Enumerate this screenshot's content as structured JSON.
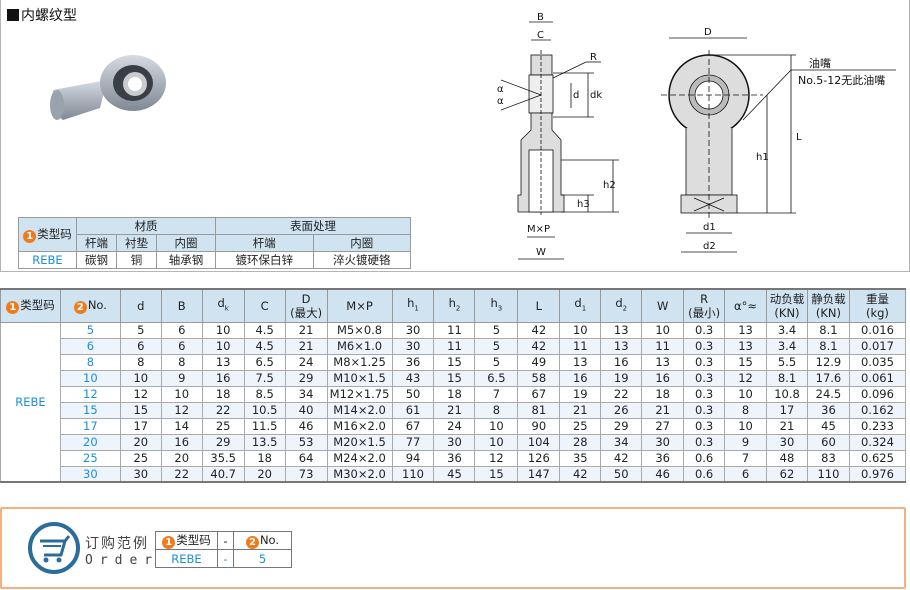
{
  "title": "内螺纹型",
  "material_table": {
    "type_code_label": "类型码",
    "material_label": "材质",
    "surface_label": "表面处理",
    "sub_headers": [
      "杆端",
      "衬垫",
      "内圈",
      "杆端",
      "内圈"
    ],
    "row": [
      "REBE",
      "碳钢",
      "铜",
      "轴承钢",
      "镀环保白锌",
      "淬火镀硬铬"
    ]
  },
  "drawing": {
    "labels": {
      "B": "B",
      "C": "C",
      "R": "R",
      "a": "α",
      "d": "d",
      "dk": "dk",
      "D": "D",
      "h1": "h1",
      "h2": "h2",
      "h3": "h3",
      "L": "L",
      "MxP": "M×P",
      "W": "W",
      "d1": "d1",
      "d2": "d2"
    },
    "oil_nipple": "油嘴",
    "oil_note": "No.5-12无此油嘴"
  },
  "spec_table": {
    "badge1": "1",
    "badge2": "2",
    "headers": [
      "类型码",
      "No.",
      "d",
      "B",
      "dk",
      "C",
      "D\n(最大)",
      "M×P",
      "h1",
      "h2",
      "h3",
      "L",
      "d1",
      "d2",
      "W",
      "R\n(最小)",
      "α°≈",
      "动负载\n(KN)",
      "静负载\n(KN)",
      "重量\n(kg)"
    ],
    "type_code": "REBE",
    "rows": [
      [
        "5",
        "5",
        "6",
        "10",
        "4.5",
        "21",
        "M5×0.8",
        "30",
        "11",
        "5",
        "42",
        "10",
        "13",
        "10",
        "0.3",
        "13",
        "3.4",
        "8.1",
        "0.016"
      ],
      [
        "6",
        "6",
        "6",
        "10",
        "4.5",
        "21",
        "M6×1.0",
        "30",
        "11",
        "5",
        "42",
        "11",
        "13",
        "11",
        "0.3",
        "13",
        "3.4",
        "8.1",
        "0.017"
      ],
      [
        "8",
        "8",
        "8",
        "13",
        "6.5",
        "24",
        "M8×1.25",
        "36",
        "15",
        "5",
        "49",
        "13",
        "16",
        "13",
        "0.3",
        "15",
        "5.5",
        "12.9",
        "0.035"
      ],
      [
        "10",
        "10",
        "9",
        "16",
        "7.5",
        "29",
        "M10×1.5",
        "43",
        "15",
        "6.5",
        "58",
        "16",
        "19",
        "16",
        "0.3",
        "12",
        "8.1",
        "17.6",
        "0.061"
      ],
      [
        "12",
        "12",
        "10",
        "18",
        "8.5",
        "34",
        "M12×1.75",
        "50",
        "18",
        "7",
        "67",
        "19",
        "22",
        "18",
        "0.3",
        "10",
        "10.8",
        "24.5",
        "0.096"
      ],
      [
        "15",
        "15",
        "12",
        "22",
        "10.5",
        "40",
        "M14×2.0",
        "61",
        "21",
        "8",
        "81",
        "21",
        "26",
        "21",
        "0.3",
        "8",
        "17",
        "36",
        "0.162"
      ],
      [
        "17",
        "17",
        "14",
        "25",
        "11.5",
        "46",
        "M16×2.0",
        "67",
        "24",
        "10",
        "90",
        "25",
        "29",
        "27",
        "0.3",
        "10",
        "21",
        "45",
        "0.233"
      ],
      [
        "20",
        "20",
        "16",
        "29",
        "13.5",
        "53",
        "M20×1.5",
        "77",
        "30",
        "10",
        "104",
        "28",
        "34",
        "30",
        "0.3",
        "9",
        "30",
        "60",
        "0.324"
      ],
      [
        "25",
        "25",
        "20",
        "35.5",
        "18",
        "64",
        "M24×2.0",
        "94",
        "36",
        "12",
        "126",
        "35",
        "42",
        "36",
        "0.6",
        "7",
        "48",
        "83",
        "0.625"
      ],
      [
        "30",
        "30",
        "22",
        "40.7",
        "20",
        "73",
        "M30×2.0",
        "110",
        "45",
        "15",
        "147",
        "42",
        "50",
        "46",
        "0.6",
        "6",
        "62",
        "110",
        "0.976"
      ]
    ]
  },
  "order": {
    "title_cn": "订购范例",
    "title_en": "Order",
    "icon": "shopping-cart-icon",
    "headers": [
      "类型码",
      "-",
      "No."
    ],
    "values": [
      "REBE",
      "-",
      "5"
    ]
  },
  "colors": {
    "accent": "#1a8fd6",
    "badge": "#f07b1c",
    "header_bg": "#cfe3f1",
    "order_border": "#f3b07c"
  }
}
